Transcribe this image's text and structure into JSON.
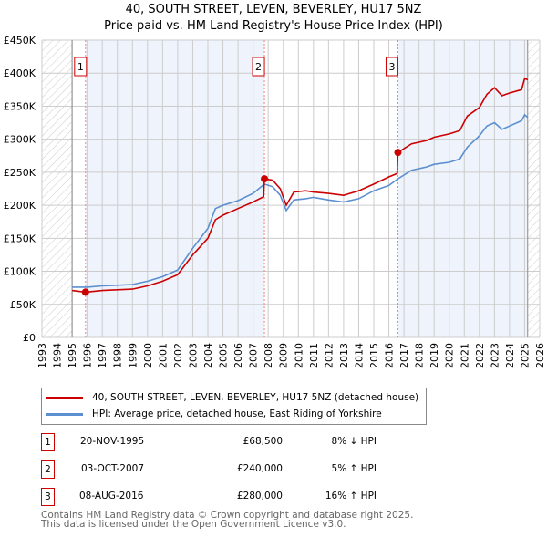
{
  "title_line1": "40, SOUTH STREET, LEVEN, BEVERLEY, HU17 5NZ",
  "title_line2": "Price paid vs. HM Land Registry's House Price Index (HPI)",
  "chart_data": {
    "type": "line",
    "xlim": [
      1993,
      2026
    ],
    "ylim": [
      0,
      450000
    ],
    "x_ticks": [
      "1993",
      "1994",
      "1995",
      "1996",
      "1997",
      "1998",
      "1999",
      "2000",
      "2001",
      "2002",
      "2003",
      "2004",
      "2005",
      "2006",
      "2007",
      "2008",
      "2009",
      "2010",
      "2011",
      "2012",
      "2013",
      "2014",
      "2015",
      "2016",
      "2017",
      "2018",
      "2019",
      "2020",
      "2021",
      "2022",
      "2023",
      "2024",
      "2025",
      "2026"
    ],
    "y_ticks": [
      {
        "v": 0,
        "label": "£0"
      },
      {
        "v": 50000,
        "label": "£50K"
      },
      {
        "v": 100000,
        "label": "£100K"
      },
      {
        "v": 150000,
        "label": "£150K"
      },
      {
        "v": 200000,
        "label": "£200K"
      },
      {
        "v": 250000,
        "label": "£250K"
      },
      {
        "v": 300000,
        "label": "£300K"
      },
      {
        "v": 350000,
        "label": "£350K"
      },
      {
        "v": 400000,
        "label": "£400K"
      },
      {
        "v": 450000,
        "label": "£450K"
      }
    ],
    "grid": true,
    "hatched_ranges": [
      [
        1993,
        1995
      ],
      [
        2025.2,
        2026
      ]
    ],
    "shaded_ranges": [
      [
        1995.89,
        2007.75
      ],
      [
        2016.6,
        2025.2
      ]
    ],
    "series": [
      {
        "name": "40, SOUTH STREET, LEVEN, BEVERLEY, HU17 5NZ (detached house)",
        "color": "#cc0000",
        "points": [
          [
            1995,
            71000
          ],
          [
            1995.89,
            68500
          ],
          [
            1997,
            71000
          ],
          [
            1998,
            72000
          ],
          [
            1999,
            73000
          ],
          [
            2000,
            78000
          ],
          [
            2001,
            85000
          ],
          [
            2002,
            95000
          ],
          [
            2003,
            125000
          ],
          [
            2004,
            150000
          ],
          [
            2004.5,
            178000
          ],
          [
            2005,
            185000
          ],
          [
            2006,
            195000
          ],
          [
            2007,
            205000
          ],
          [
            2007.7,
            213000
          ],
          [
            2007.75,
            240000
          ],
          [
            2008.3,
            238000
          ],
          [
            2008.8,
            225000
          ],
          [
            2009.2,
            200000
          ],
          [
            2009.7,
            220000
          ],
          [
            2010.5,
            222000
          ],
          [
            2011,
            220000
          ],
          [
            2012,
            218000
          ],
          [
            2013,
            215000
          ],
          [
            2014,
            222000
          ],
          [
            2015,
            232000
          ],
          [
            2016,
            243000
          ],
          [
            2016.55,
            248000
          ],
          [
            2016.6,
            280000
          ],
          [
            2017.5,
            293000
          ],
          [
            2018.5,
            298000
          ],
          [
            2019,
            303000
          ],
          [
            2020,
            308000
          ],
          [
            2020.7,
            313000
          ],
          [
            2021.2,
            335000
          ],
          [
            2022,
            348000
          ],
          [
            2022.5,
            368000
          ],
          [
            2023,
            378000
          ],
          [
            2023.5,
            366000
          ],
          [
            2024,
            370000
          ],
          [
            2024.8,
            375000
          ],
          [
            2025,
            392000
          ],
          [
            2025.2,
            390000
          ]
        ]
      },
      {
        "name": "HPI: Average price, detached house, East Riding of Yorkshire",
        "color": "#5b8fd0",
        "points": [
          [
            1995,
            76000
          ],
          [
            1996,
            76000
          ],
          [
            1997,
            78000
          ],
          [
            1998,
            79000
          ],
          [
            1999,
            80000
          ],
          [
            2000,
            85000
          ],
          [
            2001,
            92000
          ],
          [
            2002,
            102000
          ],
          [
            2003,
            135000
          ],
          [
            2004,
            165000
          ],
          [
            2004.5,
            195000
          ],
          [
            2005,
            200000
          ],
          [
            2006,
            207000
          ],
          [
            2007,
            218000
          ],
          [
            2007.75,
            232000
          ],
          [
            2008.3,
            228000
          ],
          [
            2008.8,
            215000
          ],
          [
            2009.2,
            192000
          ],
          [
            2009.7,
            208000
          ],
          [
            2010.5,
            210000
          ],
          [
            2011,
            212000
          ],
          [
            2012,
            208000
          ],
          [
            2013,
            205000
          ],
          [
            2014,
            210000
          ],
          [
            2015,
            222000
          ],
          [
            2016,
            230000
          ],
          [
            2016.6,
            240000
          ],
          [
            2017.5,
            253000
          ],
          [
            2018.5,
            258000
          ],
          [
            2019,
            262000
          ],
          [
            2020,
            265000
          ],
          [
            2020.7,
            270000
          ],
          [
            2021.2,
            288000
          ],
          [
            2022,
            305000
          ],
          [
            2022.5,
            320000
          ],
          [
            2023,
            325000
          ],
          [
            2023.5,
            315000
          ],
          [
            2024,
            320000
          ],
          [
            2024.8,
            328000
          ],
          [
            2025,
            337000
          ],
          [
            2025.2,
            333000
          ]
        ]
      }
    ],
    "sales": [
      {
        "label": "1",
        "x": 1995.89,
        "y": 68500
      },
      {
        "label": "2",
        "x": 2007.75,
        "y": 240000
      },
      {
        "label": "3",
        "x": 2016.6,
        "y": 280000
      }
    ]
  },
  "legend": {
    "property": "40, SOUTH STREET, LEVEN, BEVERLEY, HU17 5NZ (detached house)",
    "hpi": "HPI: Average price, detached house, East Riding of Yorkshire"
  },
  "transactions": [
    {
      "num": "1",
      "date": "20-NOV-1995",
      "price": "£68,500",
      "hpi": "8% ↓ HPI"
    },
    {
      "num": "2",
      "date": "03-OCT-2007",
      "price": "£240,000",
      "hpi": "5% ↑ HPI"
    },
    {
      "num": "3",
      "date": "08-AUG-2016",
      "price": "£280,000",
      "hpi": "16% ↑ HPI"
    }
  ],
  "footer_line1": "Contains HM Land Registry data © Crown copyright and database right 2025.",
  "footer_line2": "This data is licensed under the Open Government Licence v3.0."
}
